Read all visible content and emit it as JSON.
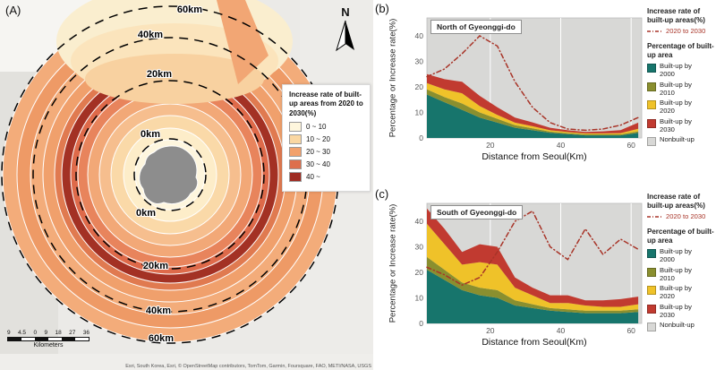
{
  "figure": {
    "panel_a_label": "(A)",
    "panel_b_label": "(b)",
    "panel_c_label": "(c)"
  },
  "map": {
    "north_label": "N",
    "legend": {
      "title": "Increase rate of built-up areas from 2020 to 2030(%)",
      "classes": [
        {
          "label": "0 ~ 10",
          "color": "#FEF6DD"
        },
        {
          "label": "10 ~ 20",
          "color": "#FAD7A2"
        },
        {
          "label": "20 ~ 30",
          "color": "#F2A16C"
        },
        {
          "label": "30 ~ 40",
          "color": "#DD6F4C"
        },
        {
          "label": "40 ~",
          "color": "#9E2B21"
        }
      ]
    },
    "distance_rings": {
      "top_labels": [
        "60km",
        "40km",
        "20km",
        "0km"
      ],
      "bottom_labels": [
        "0km",
        "20km",
        "40km",
        "60km"
      ]
    },
    "scale_bar": {
      "ticks": [
        "9",
        "4.5",
        "0",
        "9",
        "18",
        "27",
        "36"
      ],
      "unit": "Kilometers"
    },
    "attribution": "Esri, South Korea, Esri, © OpenStreetMap contributors, TomTom, Garmin, Foursquare, FAO, METI/NASA, USGS"
  },
  "charts": {
    "ylabel": "Percentage or Increase rate(%)",
    "xlabel": "Distance from Seoul(Km)",
    "legend": {
      "rate_title": "Increase rate of built-up areas(%)",
      "rate_item": "2020 to 2030",
      "rate_color": "#A83428",
      "pct_title": "Percentage of built-up area",
      "items": [
        {
          "label": "Built-up by 2000",
          "color": "#17756C"
        },
        {
          "label": "Built-up by 2010",
          "color": "#8A8F2F"
        },
        {
          "label": "Built-up by 2020",
          "color": "#EFC229"
        },
        {
          "label": "Built-up by 2030",
          "color": "#C13A30"
        },
        {
          "label": "Nonbuilt-up",
          "color": "#D8D8D6"
        }
      ]
    }
  },
  "chart_data": [
    {
      "panel": "b",
      "type": "area",
      "title": "North of Gyeonggi-do",
      "xlabel": "Distance from Seoul(Km)",
      "ylabel": "Percentage or Increase rate(%)",
      "xlim": [
        2,
        63
      ],
      "ylim": [
        0,
        47
      ],
      "xticks": [
        20,
        40,
        60
      ],
      "yticks": [
        0,
        10,
        20,
        30,
        40
      ],
      "grid": "vertical-white",
      "legend_position": "right",
      "x": [
        2,
        7,
        12,
        17,
        22,
        27,
        32,
        37,
        42,
        47,
        52,
        57,
        62
      ],
      "series": [
        {
          "name": "Built-up by 2000",
          "values": [
            17,
            14,
            11,
            8,
            6,
            4,
            3,
            2,
            1.5,
            1,
            1,
            1,
            2
          ]
        },
        {
          "name": "Built-up by 2010",
          "values": [
            2,
            2,
            2.5,
            2,
            1.5,
            1,
            0.8,
            0.5,
            0.4,
            0.4,
            0.4,
            0.4,
            0.6
          ]
        },
        {
          "name": "Built-up by 2020",
          "values": [
            2.5,
            3,
            4,
            2.5,
            1.5,
            1,
            0.8,
            0.5,
            0.4,
            0.4,
            0.4,
            0.5,
            1
          ]
        },
        {
          "name": "Built-up by 2030",
          "values": [
            3.5,
            4,
            4.5,
            4,
            3,
            2,
            1.5,
            1,
            0.7,
            0.6,
            0.8,
            1.2,
            2.4
          ]
        }
      ],
      "background_series": {
        "name": "Nonbuilt-up",
        "values": "remainder of 100% (fills plot area)"
      },
      "line": {
        "name": "2020 to 2030",
        "values": [
          24,
          27,
          33,
          40,
          36,
          22,
          12,
          6,
          3.5,
          3,
          3.5,
          5,
          8
        ]
      }
    },
    {
      "panel": "c",
      "type": "area",
      "title": "South of Gyeonggi-do",
      "xlabel": "Distance from Seoul(Km)",
      "ylabel": "Percentage or Increase rate(%)",
      "xlim": [
        2,
        63
      ],
      "ylim": [
        0,
        47
      ],
      "xticks": [
        20,
        40,
        60
      ],
      "yticks": [
        0,
        10,
        20,
        30,
        40
      ],
      "grid": "vertical-white",
      "legend_position": "right",
      "x": [
        2,
        7,
        12,
        17,
        22,
        27,
        32,
        37,
        42,
        47,
        52,
        57,
        62
      ],
      "series": [
        {
          "name": "Built-up by 2000",
          "values": [
            21,
            17,
            13,
            11,
            10,
            7,
            6,
            5,
            4.5,
            4,
            4,
            4,
            4.5
          ]
        },
        {
          "name": "Built-up by 2010",
          "values": [
            5,
            4,
            3,
            3,
            3,
            2,
            1.5,
            1,
            1,
            1,
            1,
            1,
            1
          ]
        },
        {
          "name": "Built-up by 2020",
          "values": [
            13,
            10,
            7,
            10,
            10,
            5,
            3.5,
            2,
            2.5,
            2,
            1.5,
            1.5,
            2
          ]
        },
        {
          "name": "Built-up by 2030",
          "values": [
            6,
            6,
            5,
            7,
            7,
            4,
            3,
            3,
            3,
            2,
            2.5,
            3,
            3
          ]
        }
      ],
      "background_series": {
        "name": "Nonbuilt-up",
        "values": "remainder of 100% (fills plot area)"
      },
      "line": {
        "name": "2020 to 2030",
        "values": [
          22,
          19,
          15,
          18,
          28,
          40,
          44,
          30,
          25,
          37,
          27,
          33,
          29
        ]
      }
    }
  ]
}
